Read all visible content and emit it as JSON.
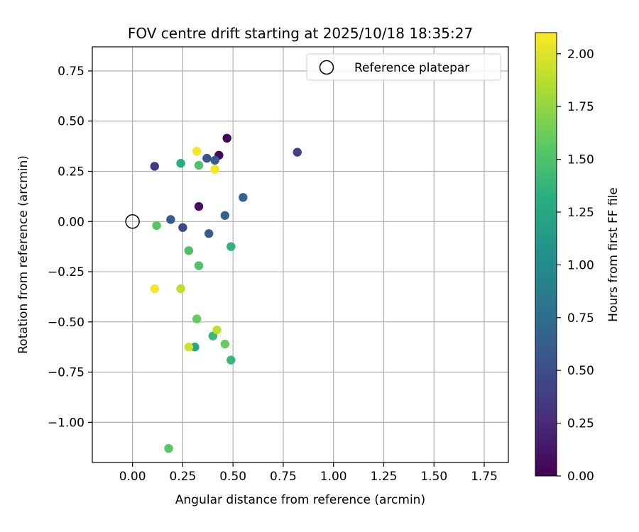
{
  "chart_data": {
    "type": "scatter",
    "title": "FOV centre drift starting at 2025/10/18 18:35:27",
    "xlabel": "Angular distance from reference (arcmin)",
    "ylabel": "Rotation from reference (arcmin)",
    "xlim": [
      -0.2,
      1.87
    ],
    "ylim": [
      -1.2,
      0.87
    ],
    "xticks": [
      0.0,
      0.25,
      0.5,
      0.75,
      1.0,
      1.25,
      1.5,
      1.75
    ],
    "xtick_labels": [
      "0.00",
      "0.25",
      "0.50",
      "0.75",
      "1.00",
      "1.25",
      "1.50",
      "1.75"
    ],
    "yticks": [
      0.75,
      0.5,
      0.25,
      0.0,
      -0.25,
      -0.5,
      -0.75,
      -1.0
    ],
    "ytick_labels": [
      "0.75",
      "0.50",
      "0.25",
      "0.00",
      "−0.25",
      "−0.50",
      "−0.75",
      "−1.00"
    ],
    "grid": true,
    "legend": {
      "position": "top-right",
      "entries": [
        {
          "label": "Reference platepar",
          "marker": "open-circle"
        }
      ]
    },
    "reference_point": {
      "x": 0.0,
      "y": 0.0
    },
    "colorbar": {
      "label": "Hours from first FF file",
      "colormap": "viridis",
      "range": [
        0.0,
        2.1
      ],
      "ticks": [
        0.0,
        0.25,
        0.5,
        0.75,
        1.0,
        1.25,
        1.5,
        1.75,
        2.0
      ],
      "tick_labels": [
        "0.00",
        "0.25",
        "0.50",
        "0.75",
        "1.00",
        "1.25",
        "1.50",
        "1.75",
        "2.00"
      ]
    },
    "points": [
      {
        "x": 0.47,
        "y": 0.415,
        "c": 0.02
      },
      {
        "x": 0.43,
        "y": 0.33,
        "c": 0.05
      },
      {
        "x": 0.33,
        "y": 0.075,
        "c": 0.08
      },
      {
        "x": 0.11,
        "y": 0.275,
        "c": 0.35
      },
      {
        "x": 0.82,
        "y": 0.345,
        "c": 0.4
      },
      {
        "x": 0.25,
        "y": -0.03,
        "c": 0.45
      },
      {
        "x": 0.37,
        "y": 0.315,
        "c": 0.55
      },
      {
        "x": 0.38,
        "y": -0.06,
        "c": 0.6
      },
      {
        "x": 0.19,
        "y": 0.01,
        "c": 0.6
      },
      {
        "x": 0.41,
        "y": 0.305,
        "c": 0.62
      },
      {
        "x": 0.46,
        "y": 0.03,
        "c": 0.65
      },
      {
        "x": 0.55,
        "y": 0.12,
        "c": 0.68
      },
      {
        "x": 0.31,
        "y": -0.625,
        "c": 1.25
      },
      {
        "x": 0.24,
        "y": 0.29,
        "c": 1.3
      },
      {
        "x": 0.49,
        "y": -0.125,
        "c": 1.35
      },
      {
        "x": 0.49,
        "y": -0.69,
        "c": 1.4
      },
      {
        "x": 0.4,
        "y": -0.57,
        "c": 1.4
      },
      {
        "x": 0.28,
        "y": -0.145,
        "c": 1.5
      },
      {
        "x": 0.33,
        "y": 0.28,
        "c": 1.5
      },
      {
        "x": 0.33,
        "y": -0.22,
        "c": 1.5
      },
      {
        "x": 0.12,
        "y": -0.02,
        "c": 1.55
      },
      {
        "x": 0.18,
        "y": -1.13,
        "c": 1.55
      },
      {
        "x": 0.46,
        "y": -0.61,
        "c": 1.6
      },
      {
        "x": 0.32,
        "y": -0.485,
        "c": 1.6
      },
      {
        "x": 0.24,
        "y": -0.335,
        "c": 1.9
      },
      {
        "x": 0.42,
        "y": -0.54,
        "c": 1.9
      },
      {
        "x": 0.28,
        "y": -0.625,
        "c": 1.95
      },
      {
        "x": 0.32,
        "y": 0.35,
        "c": 2.08
      },
      {
        "x": 0.41,
        "y": 0.26,
        "c": 2.08
      },
      {
        "x": 0.11,
        "y": -0.335,
        "c": 2.08
      }
    ]
  }
}
